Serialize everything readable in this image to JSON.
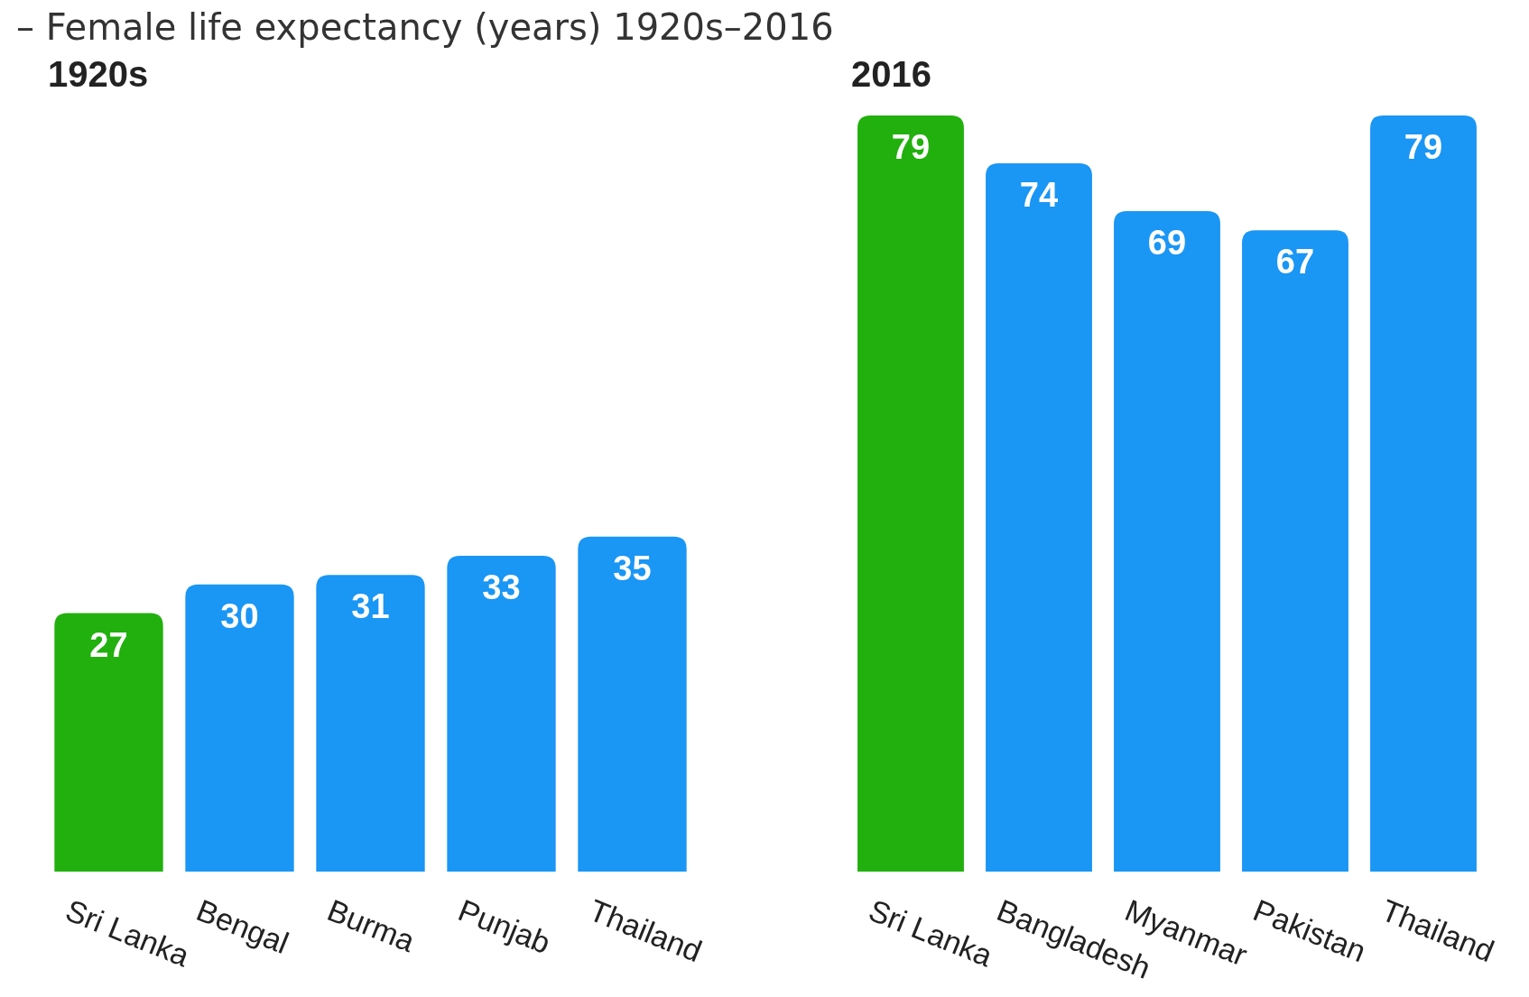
{
  "chart_data": [
    {
      "type": "bar",
      "title": "1920s",
      "annotations": [
        "– Female life expectancy (years) 1920s–2016"
      ],
      "categories": [
        "Sri Lanka",
        "Bengal",
        "Burma",
        "Punjab",
        "Thailand"
      ],
      "values": [
        27,
        30,
        31,
        33,
        35
      ],
      "colors": [
        "#22b00e",
        "#1a96f5",
        "#1a96f5",
        "#1a96f5",
        "#1a96f5"
      ],
      "data_labels": true
    },
    {
      "type": "bar",
      "title": "2016",
      "categories": [
        "Sri Lanka",
        "Bangladesh",
        "Myanmar",
        "Pakistan",
        "Thailand"
      ],
      "values": [
        79,
        74,
        69,
        67,
        79
      ],
      "colors": [
        "#22b00e",
        "#1a96f5",
        "#1a96f5",
        "#1a96f5",
        "#1a96f5"
      ],
      "data_labels": true
    }
  ]
}
